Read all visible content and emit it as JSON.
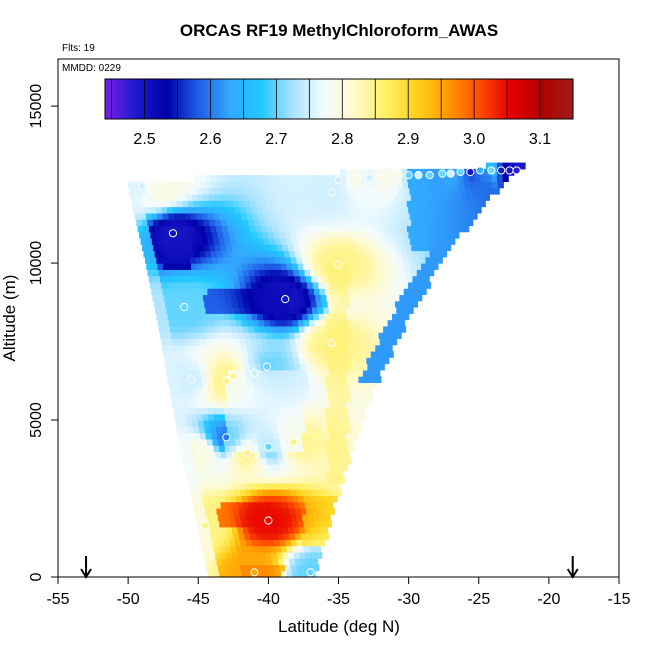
{
  "chart_data": {
    "type": "heatmap",
    "title": "ORCAS RF19 MethylChloroform_AWAS",
    "flights_label": "Flts: 19",
    "date_label": "MMDD: 0229",
    "xlabel": "Latitude (deg N)",
    "ylabel": "Altitude (m)",
    "xlim": [
      -55,
      -15
    ],
    "ylim": [
      0,
      16500
    ],
    "x_ticks": [
      -55,
      -50,
      -45,
      -40,
      -35,
      -30,
      -25,
      -20,
      -15
    ],
    "y_ticks": [
      0,
      5000,
      10000,
      15000
    ],
    "colorbar": {
      "range": [
        2.44,
        3.15
      ],
      "ticks": [
        2.5,
        2.6,
        2.7,
        2.8,
        2.9,
        3.0,
        3.1
      ],
      "colors": [
        "#7a1fe8",
        "#1a1acc",
        "#0000aa",
        "#1f5fe6",
        "#33a8ff",
        "#1fc8ff",
        "#a8e2ff",
        "#f2fbff",
        "#fffacc",
        "#fff066",
        "#ffd11a",
        "#ff9900",
        "#ff4d00",
        "#e60000",
        "#b30000",
        "#a01c1c"
      ]
    },
    "arrows_x": [
      -53,
      -18.3
    ],
    "samples": [
      {
        "lat": -49,
        "alt": 12450,
        "value": 2.75
      },
      {
        "lat": -48.2,
        "alt": 12450,
        "value": 2.8
      },
      {
        "lat": -47.7,
        "alt": 12450,
        "value": 2.8
      },
      {
        "lat": -46.8,
        "alt": 10950,
        "value": 2.5
      },
      {
        "lat": -46,
        "alt": 8600,
        "value": 2.7
      },
      {
        "lat": -45.5,
        "alt": 6300,
        "value": 2.75
      },
      {
        "lat": -43,
        "alt": 6250,
        "value": 2.85
      },
      {
        "lat": -42.5,
        "alt": 6400,
        "value": 2.85
      },
      {
        "lat": -41,
        "alt": 6500,
        "value": 2.75
      },
      {
        "lat": -40.1,
        "alt": 6700,
        "value": 2.7
      },
      {
        "lat": -38.8,
        "alt": 8850,
        "value": 2.5
      },
      {
        "lat": -38.2,
        "alt": 4300,
        "value": 2.85
      },
      {
        "lat": -40,
        "alt": 4150,
        "value": 2.7
      },
      {
        "lat": -41.5,
        "alt": 3950,
        "value": 2.85
      },
      {
        "lat": -43,
        "alt": 4450,
        "value": 2.6
      },
      {
        "lat": -44.8,
        "alt": 4000,
        "value": 2.8
      },
      {
        "lat": -44.5,
        "alt": 1650,
        "value": 2.85
      },
      {
        "lat": -40,
        "alt": 1800,
        "value": 3.05
      },
      {
        "lat": -41,
        "alt": 150,
        "value": 2.95
      },
      {
        "lat": -37,
        "alt": 150,
        "value": 2.7
      },
      {
        "lat": -35.5,
        "alt": 7450,
        "value": 2.85
      },
      {
        "lat": -35,
        "alt": 9950,
        "value": 2.85
      },
      {
        "lat": -35.5,
        "alt": 12250,
        "value": 2.75
      },
      {
        "lat": -35,
        "alt": 12650,
        "value": 2.75
      },
      {
        "lat": -33.7,
        "alt": 12700,
        "value": 2.8
      },
      {
        "lat": -32.8,
        "alt": 12700,
        "value": 2.75
      },
      {
        "lat": -32,
        "alt": 12700,
        "value": 2.8
      },
      {
        "lat": -30.7,
        "alt": 12800,
        "value": 2.8
      },
      {
        "lat": -30,
        "alt": 12800,
        "value": 2.7
      },
      {
        "lat": -29.3,
        "alt": 12800,
        "value": 2.75
      },
      {
        "lat": -28.5,
        "alt": 12800,
        "value": 2.7
      },
      {
        "lat": -27.6,
        "alt": 12850,
        "value": 2.7
      },
      {
        "lat": -27,
        "alt": 12850,
        "value": 2.75
      },
      {
        "lat": -26.3,
        "alt": 12900,
        "value": 2.7
      },
      {
        "lat": -25.6,
        "alt": 12900,
        "value": 2.5
      },
      {
        "lat": -24.9,
        "alt": 12950,
        "value": 2.65
      },
      {
        "lat": -24.1,
        "alt": 12950,
        "value": 2.7
      },
      {
        "lat": -23.4,
        "alt": 12950,
        "value": 2.55
      },
      {
        "lat": -22.8,
        "alt": 12950,
        "value": 2.5
      },
      {
        "lat": -22.3,
        "alt": 12950,
        "value": 2.48
      }
    ],
    "field": {
      "left_edge": [
        [
          0,
          -44.3
        ],
        [
          2000,
          -45.3
        ],
        [
          4000,
          -46.3
        ],
        [
          6000,
          -47.1
        ],
        [
          8000,
          -47.9
        ],
        [
          10000,
          -48.8
        ],
        [
          12500,
          -50.1
        ]
      ],
      "right_edge": [
        [
          0,
          -36.8
        ],
        [
          2000,
          -35.6
        ],
        [
          4000,
          -34.2
        ],
        [
          6000,
          -32.6
        ],
        [
          8000,
          -30.4
        ],
        [
          10000,
          -27.8
        ],
        [
          12000,
          -24.4
        ],
        [
          13000,
          -22.1
        ]
      ],
      "top_alt_left": 12500,
      "top_alt_right": 13050,
      "features": [
        {
          "kind": "band",
          "lat": [
            -47.5,
            -45.5
          ],
          "alt": [
            9800,
            11200
          ],
          "value": 2.5
        },
        {
          "kind": "band",
          "lat": [
            -44.5,
            -38.5
          ],
          "alt": [
            8500,
            9100
          ],
          "value": 2.52
        },
        {
          "kind": "band",
          "lat": [
            -43.5,
            -40
          ],
          "alt": [
            1650,
            2300
          ],
          "value": 3.05
        },
        {
          "kind": "band",
          "lat": [
            -42,
            -39
          ],
          "alt": [
            0,
            300
          ],
          "value": 2.98
        },
        {
          "kind": "band",
          "lat": [
            -37.5,
            -34
          ],
          "alt": [
            1000,
            2500
          ],
          "value": 2.92
        },
        {
          "kind": "band",
          "lat": [
            -35.8,
            -34.3
          ],
          "alt": [
            3000,
            10000
          ],
          "value": 2.86
        },
        {
          "kind": "band",
          "lat": [
            -43,
            -37.5
          ],
          "alt": [
            4000,
            6500
          ],
          "value": 2.76
        },
        {
          "kind": "band",
          "lat": [
            -30,
            -24
          ],
          "alt": [
            10500,
            13000
          ],
          "value": 2.58
        }
      ]
    }
  }
}
